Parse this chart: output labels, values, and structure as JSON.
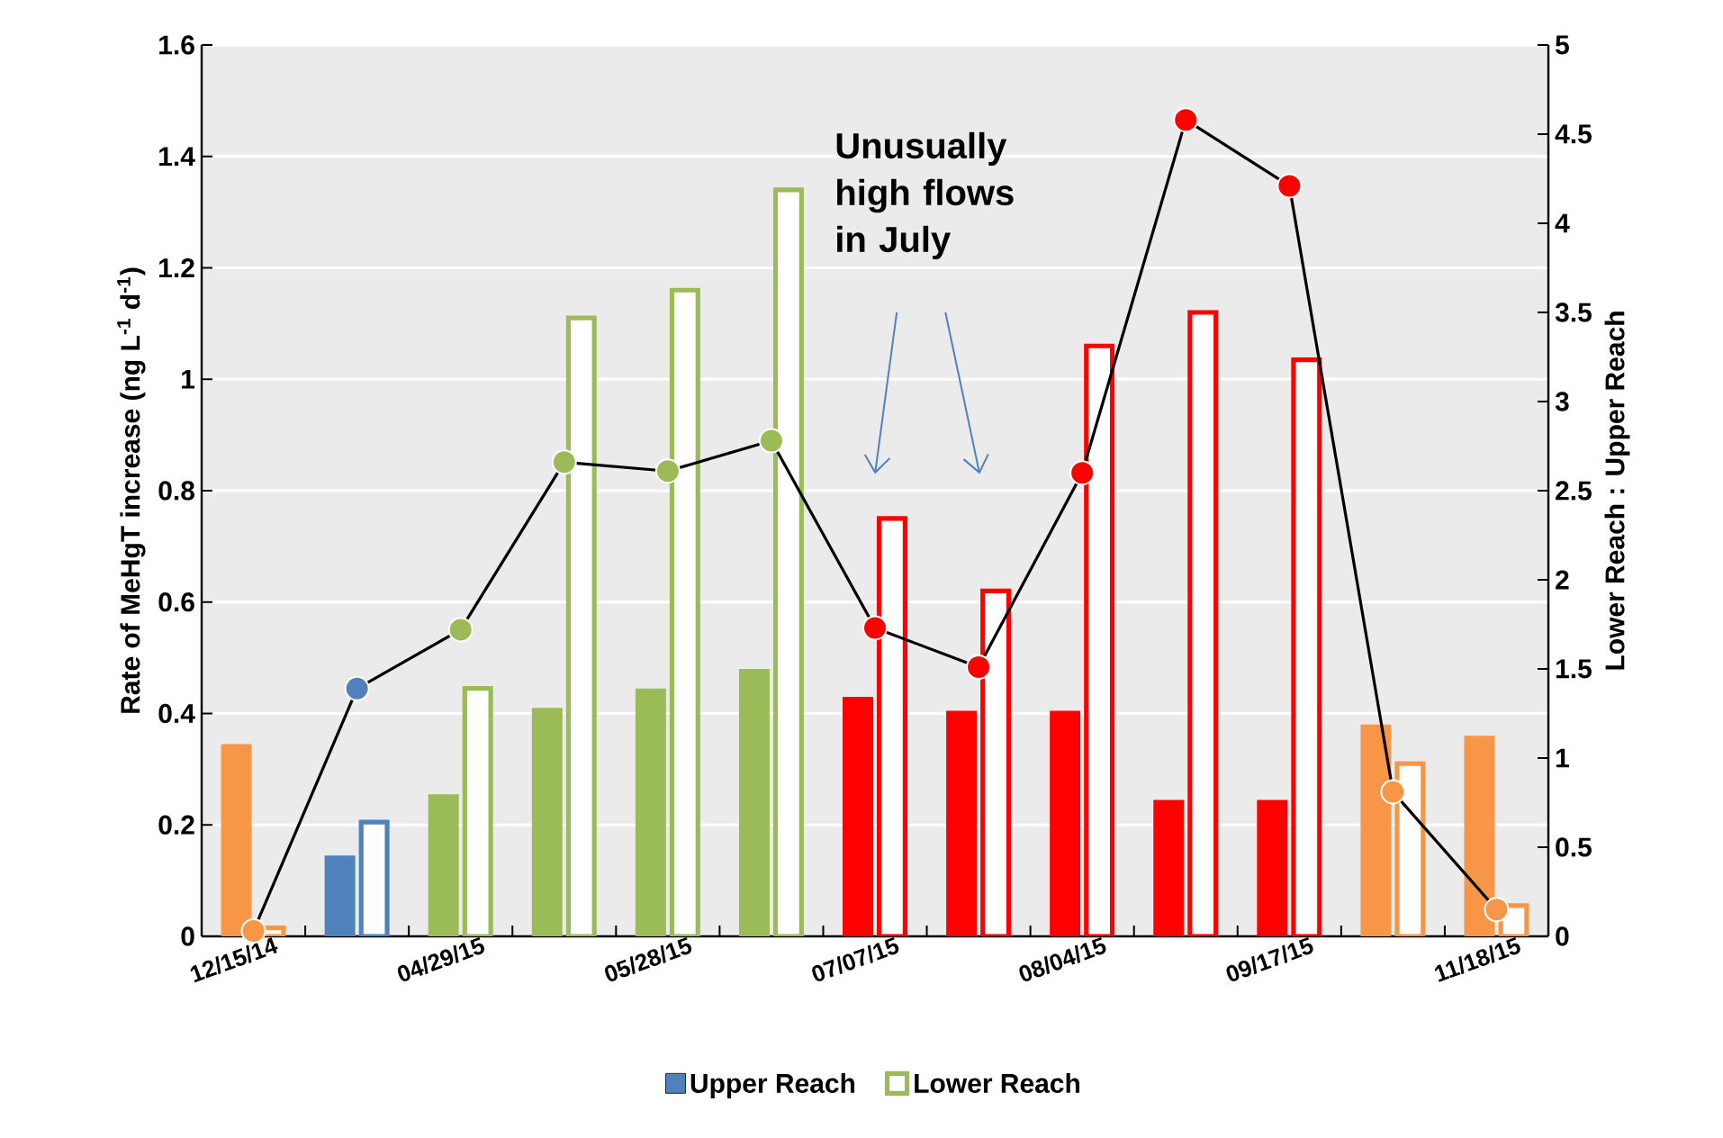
{
  "chart_data": {
    "type": "bar",
    "ylabel": "Rate of MeHgT increase (ng L$^{-1}$ d$^{-1}$)",
    "y2label": "Lower Reach : Upper Reach",
    "categories": [
      "12/15/14",
      null,
      "04/29/15",
      null,
      "05/28/15",
      null,
      "07/07/15",
      null,
      "08/04/15",
      null,
      "09/17/15",
      null,
      "11/18/15"
    ],
    "series": [
      {
        "name": "Upper Reach",
        "color": "#4f81bd",
        "colors": [
          "#f79646",
          "#4f81bd",
          "#9bbb59",
          "#9bbb59",
          "#9bbb59",
          "#9bbb59",
          "#ff0000",
          "#ff0000",
          "#ff0000",
          "#ff0000",
          "#ff0000",
          "#f79646",
          "#f79646"
        ],
        "values": [
          0.345,
          0.145,
          0.255,
          0.41,
          0.445,
          0.48,
          0.43,
          0.405,
          0.405,
          0.245,
          0.245,
          0.38,
          0.36
        ]
      },
      {
        "name": "Lower Reach",
        "color": "#9bbb59",
        "colors": [
          "#f79646",
          "#4f81bd",
          "#9bbb59",
          "#9bbb59",
          "#9bbb59",
          "#9bbb59",
          "#ff0000",
          "#ff0000",
          "#ff0000",
          "#ff0000",
          "#ff0000",
          "#f79646",
          "#f79646"
        ],
        "values": [
          0.015,
          0.205,
          0.445,
          1.11,
          1.16,
          1.34,
          0.75,
          0.62,
          1.06,
          1.12,
          1.035,
          0.31,
          0.055
        ]
      },
      {
        "type": "line",
        "axis": "y2",
        "marker": "circle",
        "color": "#000000",
        "colors": [
          "#f79646",
          "#4f81bd",
          "#9bbb59",
          "#9bbb59",
          "#9bbb59",
          "#9bbb59",
          "#ff0000",
          "#ff0000",
          "#ff0000",
          "#ff0000",
          "#ff0000",
          "#f79646",
          "#f79646"
        ],
        "values": [
          0.03,
          1.39,
          1.72,
          2.66,
          2.61,
          2.78,
          1.73,
          1.51,
          2.6,
          4.58,
          4.21,
          0.81,
          0.15
        ]
      }
    ],
    "ylim": [
      0,
      1.6
    ],
    "yticks": [
      0,
      0.2,
      0.4,
      0.6,
      0.8,
      1,
      1.2,
      1.4,
      1.6
    ],
    "y2lim": [
      0,
      5
    ],
    "y2ticks": [
      0,
      0.5,
      1,
      1.5,
      2,
      2.5,
      3,
      3.5,
      4,
      4.5,
      5
    ],
    "grid": "y",
    "legend": "bottom",
    "annotations": [
      "Unusually high flows in July"
    ]
  }
}
